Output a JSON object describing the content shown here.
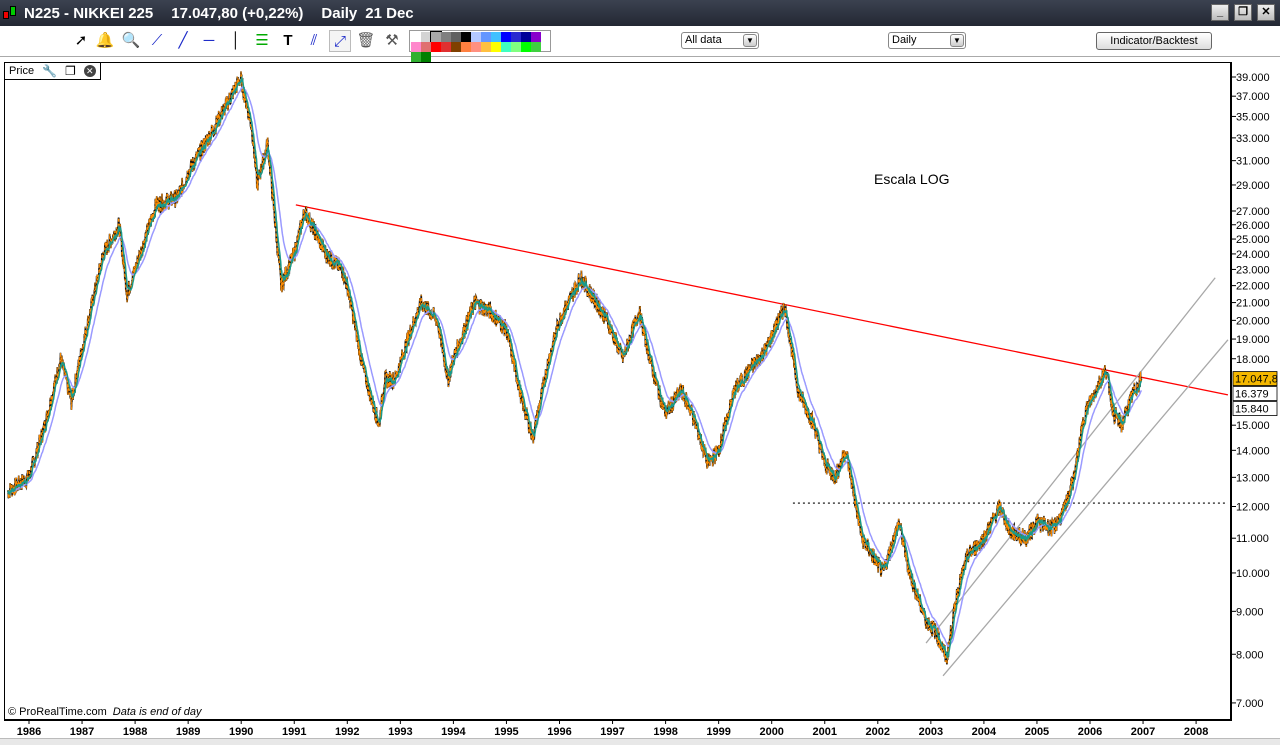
{
  "window": {
    "symbol": "N225 - NIKKEI 225",
    "quote": "17.047,80 (+0,22%)",
    "period": "Daily",
    "date": "21 Dec",
    "controls": [
      "_",
      "❐",
      "✕"
    ]
  },
  "toolbar": {
    "tools": [
      "pointer-icon",
      "alarm-bell-icon",
      "zoom-icon",
      "segment-icon",
      "line-icon",
      "horizontal-line-icon",
      "vertical-line-icon",
      "fibonacci-icon",
      "text-icon",
      "parallel-lines-icon",
      "channel-icon",
      "trash-icon",
      "settings-tools-icon"
    ],
    "palette": [
      "#ffffff",
      "#d4d4d4",
      "#a8a8a8",
      "#808080",
      "#606060",
      "#000000",
      "#b4c8ff",
      "#6496ff",
      "#40c0ff",
      "#0000ff",
      "#2828d0",
      "#000099",
      "#8800cc",
      "#ff88cc",
      "#e07070",
      "#ff0000",
      "#e03030",
      "#804000",
      "#ff8040",
      "#ff9080",
      "#ffc040",
      "#ffff00",
      "#40ffc0",
      "#80ff80",
      "#00ff00",
      "#40d040",
      "#30b030",
      "#008000"
    ],
    "range_select": "All data",
    "period_select": "Daily",
    "indicator_button": "Indicator/Backtest"
  },
  "panel": {
    "label": "Price",
    "copyright": "© ProRealTime.com",
    "note": "Data is end of day",
    "annotation": "Escala LOG"
  },
  "chart_data": {
    "type": "line",
    "title": "N225 - NIKKEI 225",
    "scale": "log",
    "ylim": [
      6800,
      40500
    ],
    "xlim": [
      1985.6,
      2008.6
    ],
    "x_ticks": [
      "1986",
      "1987",
      "1988",
      "1989",
      "1990",
      "1991",
      "1992",
      "1993",
      "1994",
      "1995",
      "1996",
      "1997",
      "1998",
      "1999",
      "2000",
      "2001",
      "2002",
      "2003",
      "2004",
      "2005",
      "2006",
      "2007",
      "2008"
    ],
    "y_ticks": [
      {
        "v": 39000,
        "label": "39.000"
      },
      {
        "v": 37000,
        "label": "37.000"
      },
      {
        "v": 35000,
        "label": "35.000"
      },
      {
        "v": 33000,
        "label": "33.000"
      },
      {
        "v": 31000,
        "label": "31.000"
      },
      {
        "v": 29000,
        "label": "29.000"
      },
      {
        "v": 27000,
        "label": "27.000"
      },
      {
        "v": 26000,
        "label": "26.000"
      },
      {
        "v": 25000,
        "label": "25.000"
      },
      {
        "v": 24000,
        "label": "24.000"
      },
      {
        "v": 23000,
        "label": "23.000"
      },
      {
        "v": 22000,
        "label": "22.000"
      },
      {
        "v": 21000,
        "label": "21.000"
      },
      {
        "v": 20000,
        "label": "20.000"
      },
      {
        "v": 19000,
        "label": "19.000"
      },
      {
        "v": 18000,
        "label": "18.000"
      },
      {
        "v": 15000,
        "label": "15.000"
      },
      {
        "v": 14000,
        "label": "14.000"
      },
      {
        "v": 13000,
        "label": "13.000"
      },
      {
        "v": 12000,
        "label": "12.000"
      },
      {
        "v": 11000,
        "label": "11.000"
      },
      {
        "v": 10000,
        "label": "10.000"
      },
      {
        "v": 9000,
        "label": "9.000"
      },
      {
        "v": 8000,
        "label": "8.000"
      },
      {
        "v": 7000,
        "label": "7.000"
      }
    ],
    "series": [
      {
        "name": "N225 price",
        "color": "#ff8c00",
        "points": [
          [
            1985.6,
            12500
          ],
          [
            1986.0,
            13000
          ],
          [
            1986.3,
            15000
          ],
          [
            1986.6,
            18000
          ],
          [
            1986.8,
            16000
          ],
          [
            1987.0,
            18500
          ],
          [
            1987.4,
            24000
          ],
          [
            1987.7,
            26000
          ],
          [
            1987.85,
            21500
          ],
          [
            1988.0,
            23000
          ],
          [
            1988.4,
            27500
          ],
          [
            1988.8,
            28000
          ],
          [
            1989.0,
            30000
          ],
          [
            1989.5,
            34000
          ],
          [
            1989.99,
            38900
          ],
          [
            1990.2,
            34000
          ],
          [
            1990.3,
            29000
          ],
          [
            1990.5,
            32500
          ],
          [
            1990.75,
            22000
          ],
          [
            1991.0,
            24000
          ],
          [
            1991.2,
            27000
          ],
          [
            1991.6,
            24000
          ],
          [
            1991.9,
            23000
          ],
          [
            1992.0,
            22000
          ],
          [
            1992.3,
            17500
          ],
          [
            1992.6,
            15000
          ],
          [
            1992.7,
            17000
          ],
          [
            1992.9,
            17000
          ],
          [
            1993.2,
            19500
          ],
          [
            1993.4,
            21000
          ],
          [
            1993.7,
            20000
          ],
          [
            1993.9,
            17000
          ],
          [
            1994.0,
            18000
          ],
          [
            1994.4,
            21000
          ],
          [
            1994.7,
            20500
          ],
          [
            1995.0,
            19500
          ],
          [
            1995.3,
            16000
          ],
          [
            1995.5,
            14500
          ],
          [
            1995.8,
            18000
          ],
          [
            1996.0,
            20000
          ],
          [
            1996.4,
            22500
          ],
          [
            1996.7,
            21000
          ],
          [
            1996.9,
            20000
          ],
          [
            1997.2,
            18000
          ],
          [
            1997.5,
            20500
          ],
          [
            1997.8,
            17000
          ],
          [
            1998.0,
            15500
          ],
          [
            1998.3,
            16500
          ],
          [
            1998.5,
            15500
          ],
          [
            1998.8,
            13500
          ],
          [
            1999.0,
            14000
          ],
          [
            1999.3,
            16500
          ],
          [
            1999.6,
            17500
          ],
          [
            1999.9,
            18500
          ],
          [
            2000.25,
            20800
          ],
          [
            2000.5,
            16500
          ],
          [
            2000.8,
            15000
          ],
          [
            2001.0,
            13500
          ],
          [
            2001.2,
            13000
          ],
          [
            2001.4,
            14000
          ],
          [
            2001.7,
            11000
          ],
          [
            2001.9,
            10500
          ],
          [
            2002.1,
            10000
          ],
          [
            2002.4,
            11500
          ],
          [
            2002.6,
            10000
          ],
          [
            2002.9,
            8800
          ],
          [
            2003.1,
            8500
          ],
          [
            2003.3,
            7900
          ],
          [
            2003.5,
            9500
          ],
          [
            2003.7,
            10500
          ],
          [
            2004.0,
            11000
          ],
          [
            2004.3,
            12000
          ],
          [
            2004.5,
            11200
          ],
          [
            2004.8,
            11000
          ],
          [
            2005.0,
            11500
          ],
          [
            2005.3,
            11300
          ],
          [
            2005.5,
            11800
          ],
          [
            2005.7,
            13000
          ],
          [
            2005.9,
            15500
          ],
          [
            2006.3,
            17500
          ],
          [
            2006.45,
            15500
          ],
          [
            2006.6,
            15000
          ],
          [
            2006.8,
            16300
          ],
          [
            2006.97,
            17047.8
          ]
        ]
      }
    ],
    "moving_averages": [
      {
        "name": "fast MA",
        "color": "#1a9a8a",
        "last": 16379,
        "label": "16.379"
      },
      {
        "name": "slow MA",
        "color": "#9a9aff",
        "last": 15840,
        "label": "15.840"
      }
    ],
    "last_price": {
      "v": 17047.8,
      "label": "17.047,8",
      "color": "#f5b800"
    },
    "lines": [
      {
        "name": "resistance",
        "color": "#ff0000",
        "from": [
          1991.03,
          27460
        ],
        "to": [
          2008.6,
          16300
        ],
        "style": "solid"
      },
      {
        "name": "support-12000",
        "color": "#444444",
        "from": [
          2000.4,
          12110
        ],
        "to": [
          2008.6,
          12110
        ],
        "style": "dotted"
      },
      {
        "name": "channel-upper",
        "color": "#a8a8a8",
        "from": [
          2002.91,
          8250
        ],
        "to": [
          2008.36,
          22480
        ],
        "style": "solid"
      },
      {
        "name": "channel-lower",
        "color": "#a8a8a8",
        "from": [
          2003.23,
          7540
        ],
        "to": [
          2008.6,
          18960
        ],
        "style": "solid"
      }
    ]
  }
}
